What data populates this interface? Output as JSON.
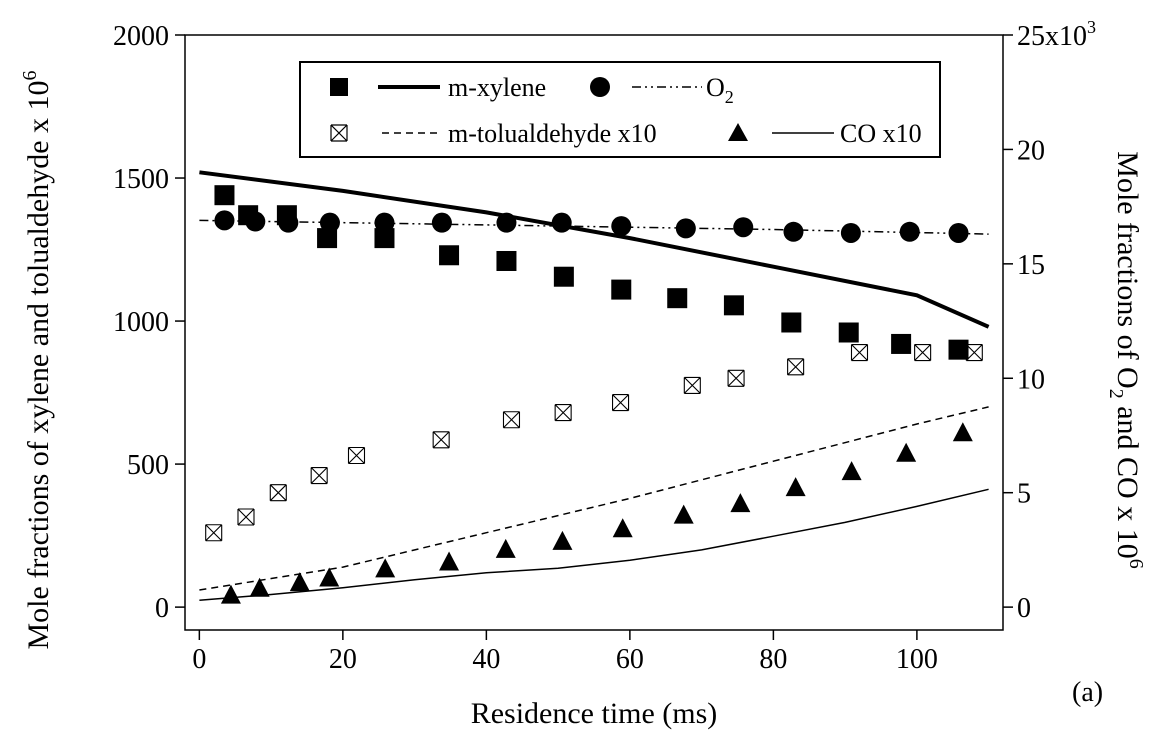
{
  "chart_data": {
    "type": "scatter",
    "panel_label": "(a)",
    "xlabel": "Residence time (ms)",
    "xlim": [
      -2,
      112
    ],
    "xticks": [
      "0",
      "20",
      "40",
      "60",
      "80",
      "100"
    ],
    "ylabel_left": {
      "text": "Mole fractions of xylene and tolualdehyde x 10",
      "sup": "6"
    },
    "ylim_left": [
      -80,
      2000
    ],
    "yticks_left": [
      "0",
      "500",
      "1000",
      "1500",
      "2000"
    ],
    "ylabel_right": {
      "pre": "Mole fractions of O",
      "sub": "2",
      "post": " and CO x 10",
      "sup": "6"
    },
    "ylim_right": [
      -1000,
      25000
    ],
    "yticks_right": [
      "0",
      "5",
      "10",
      "15",
      "20"
    ],
    "ytick_right_top": {
      "base": "25x10",
      "sup": "3"
    },
    "legend": {
      "placement": "top",
      "entries": [
        {
          "marker": "filled-square",
          "line": "thick-solid",
          "label": "m-xylene"
        },
        {
          "marker": "filled-circle",
          "line": "dash-dot-dot",
          "label": "O",
          "sub": "2"
        },
        {
          "marker": "bowtie",
          "line": "dashed",
          "label": "m-tolualdehyde x10"
        },
        {
          "marker": "filled-triangle",
          "line": "thin-solid",
          "label": "CO x10"
        }
      ]
    },
    "series": [
      {
        "name": "m-xylene",
        "kind": "points",
        "axis": "left",
        "marker": "square",
        "x": [
          3.5,
          6.8,
          12.2,
          17.8,
          25.8,
          34.8,
          42.8,
          50.8,
          58.8,
          66.6,
          74.5,
          82.5,
          90.5,
          97.8,
          105.8
        ],
        "y": [
          1440,
          1370,
          1370,
          1290,
          1290,
          1230,
          1210,
          1155,
          1110,
          1080,
          1055,
          995,
          960,
          920,
          900
        ]
      },
      {
        "name": "O2",
        "kind": "points",
        "axis": "right",
        "marker": "circle",
        "x": [
          3.5,
          7.8,
          12.4,
          18.2,
          25.8,
          33.8,
          42.8,
          50.5,
          58.8,
          67.8,
          75.8,
          82.8,
          90.8,
          99.0,
          105.8
        ],
        "y": [
          16900,
          16850,
          16800,
          16800,
          16800,
          16800,
          16800,
          16800,
          16650,
          16550,
          16600,
          16400,
          16350,
          16400,
          16350
        ]
      },
      {
        "name": "m-tolualdehyde x10",
        "kind": "points",
        "axis": "left",
        "marker": "bowtie",
        "x": [
          2.0,
          6.5,
          11.0,
          16.7,
          21.9,
          33.7,
          43.5,
          50.7,
          58.7,
          68.7,
          74.8,
          83.1,
          92.0,
          100.8,
          108.0
        ],
        "y": [
          260,
          315,
          400,
          460,
          530,
          585,
          655,
          680,
          715,
          775,
          800,
          840,
          890,
          890,
          890
        ]
      },
      {
        "name": "CO x10",
        "kind": "points",
        "axis": "right",
        "marker": "triangle",
        "x": [
          4.4,
          8.4,
          14.0,
          18.1,
          25.9,
          34.8,
          42.7,
          50.6,
          59.0,
          67.5,
          75.4,
          83.1,
          90.9,
          98.5,
          106.4
        ],
        "y": [
          500,
          800,
          1050,
          1250,
          1650,
          1950,
          2500,
          2850,
          3400,
          4000,
          4500,
          5200,
          5900,
          6700,
          7600
        ]
      },
      {
        "name": "m-xylene model",
        "kind": "line",
        "axis": "left",
        "style": "thick-solid",
        "x": [
          0,
          20,
          40,
          60,
          80,
          100,
          110
        ],
        "y": [
          1520,
          1455,
          1380,
          1290,
          1190,
          1090,
          980
        ]
      },
      {
        "name": "O2 model",
        "kind": "line",
        "axis": "right",
        "style": "dash-dot-dot",
        "x": [
          0,
          40,
          80,
          110
        ],
        "y": [
          16900,
          16700,
          16500,
          16300
        ]
      },
      {
        "name": "m-tolualdehyde x10 model",
        "kind": "line",
        "axis": "left",
        "style": "dashed",
        "x": [
          0,
          20,
          40,
          60,
          80,
          100,
          110
        ],
        "y": [
          60,
          140,
          260,
          380,
          510,
          640,
          700
        ]
      },
      {
        "name": "CO x10 model",
        "kind": "line",
        "axis": "right",
        "style": "thin-solid",
        "x": [
          0,
          10,
          20,
          30,
          40,
          50,
          60,
          70,
          80,
          90,
          100,
          110
        ],
        "y": [
          300,
          550,
          850,
          1200,
          1500,
          1700,
          2050,
          2500,
          3100,
          3700,
          4400,
          5150
        ]
      }
    ]
  }
}
